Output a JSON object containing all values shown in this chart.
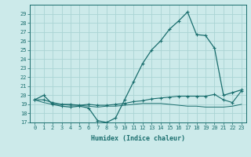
{
  "title": "",
  "xlabel": "Humidex (Indice chaleur)",
  "bg_color": "#cceaea",
  "grid_color": "#aad4d4",
  "line_color": "#1a6e6e",
  "xlim": [
    -0.5,
    23.5
  ],
  "ylim": [
    17,
    30
  ],
  "xticks": [
    0,
    1,
    2,
    3,
    4,
    5,
    6,
    7,
    8,
    9,
    10,
    11,
    12,
    13,
    14,
    15,
    16,
    17,
    18,
    19,
    20,
    21,
    22,
    23
  ],
  "yticks": [
    17,
    18,
    19,
    20,
    21,
    22,
    23,
    24,
    25,
    26,
    27,
    28,
    29
  ],
  "line1_x": [
    0,
    1,
    2,
    3,
    4,
    5,
    6,
    7,
    8,
    9,
    10,
    11,
    12,
    13,
    14,
    15,
    16,
    17,
    18,
    19,
    20,
    21,
    22,
    23
  ],
  "line1_y": [
    19.5,
    20.0,
    19.0,
    18.8,
    18.7,
    18.8,
    18.6,
    17.2,
    17.0,
    17.5,
    19.5,
    21.5,
    23.5,
    25.0,
    26.0,
    27.3,
    28.2,
    29.2,
    26.7,
    26.6,
    25.2,
    20.0,
    20.3,
    20.6
  ],
  "line2_x": [
    0,
    1,
    2,
    3,
    4,
    5,
    6,
    7,
    8,
    9,
    10,
    11,
    12,
    13,
    14,
    15,
    16,
    17,
    18,
    19,
    20,
    21,
    22,
    23
  ],
  "line2_y": [
    19.5,
    19.5,
    19.2,
    19.0,
    19.0,
    18.9,
    19.0,
    18.9,
    18.9,
    19.0,
    19.1,
    19.3,
    19.4,
    19.6,
    19.7,
    19.8,
    19.9,
    19.9,
    19.9,
    19.9,
    20.1,
    19.5,
    19.2,
    20.5
  ],
  "line3_x": [
    0,
    1,
    2,
    3,
    4,
    5,
    6,
    7,
    8,
    9,
    10,
    11,
    12,
    13,
    14,
    15,
    16,
    17,
    18,
    19,
    20,
    21,
    22,
    23
  ],
  "line3_y": [
    19.5,
    19.2,
    19.0,
    19.0,
    18.9,
    18.9,
    18.8,
    18.7,
    18.8,
    18.8,
    18.9,
    19.0,
    19.1,
    19.1,
    19.1,
    19.0,
    18.9,
    18.8,
    18.8,
    18.7,
    18.7,
    18.7,
    18.8,
    19.0
  ]
}
